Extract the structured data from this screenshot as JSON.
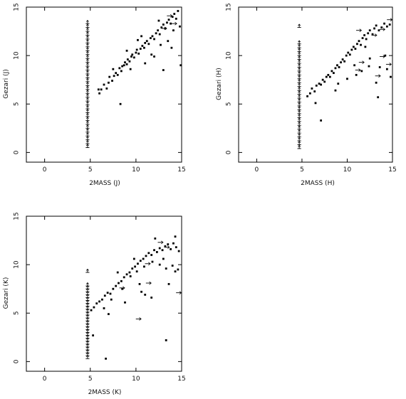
{
  "chart_data": [
    {
      "type": "scatter",
      "xlabel": "2MASS (J)",
      "ylabel": "Gezari (J)",
      "xlim": [
        -2,
        15
      ],
      "ylim": [
        -1,
        15
      ],
      "xticks": [
        0,
        5,
        10,
        15
      ],
      "yticks": [
        0,
        5,
        10,
        15
      ],
      "grid": false,
      "points": [
        [
          6.0,
          6.1
        ],
        [
          6.2,
          6.5
        ],
        [
          6.5,
          7.0
        ],
        [
          6.8,
          6.6
        ],
        [
          7.0,
          7.2
        ],
        [
          7.1,
          7.8
        ],
        [
          7.4,
          7.4
        ],
        [
          7.6,
          7.9
        ],
        [
          7.8,
          8.2
        ],
        [
          8.0,
          8.0
        ],
        [
          8.2,
          8.7
        ],
        [
          8.4,
          8.4
        ],
        [
          8.5,
          8.9
        ],
        [
          8.7,
          9.0
        ],
        [
          8.8,
          9.3
        ],
        [
          9.0,
          9.1
        ],
        [
          9.1,
          9.6
        ],
        [
          9.3,
          9.4
        ],
        [
          9.5,
          9.9
        ],
        [
          9.6,
          10.1
        ],
        [
          9.8,
          9.8
        ],
        [
          10.0,
          10.3
        ],
        [
          10.1,
          10.6
        ],
        [
          10.3,
          10.2
        ],
        [
          10.5,
          10.7
        ],
        [
          10.7,
          11.0
        ],
        [
          10.9,
          10.8
        ],
        [
          11.0,
          11.3
        ],
        [
          11.2,
          11.5
        ],
        [
          11.4,
          11.2
        ],
        [
          11.6,
          11.8
        ],
        [
          11.8,
          12.0
        ],
        [
          12.0,
          11.7
        ],
        [
          12.2,
          12.3
        ],
        [
          12.4,
          12.6
        ],
        [
          12.6,
          12.2
        ],
        [
          12.8,
          12.9
        ],
        [
          13.0,
          13.2
        ],
        [
          13.2,
          12.8
        ],
        [
          13.4,
          13.4
        ],
        [
          13.6,
          13.7
        ],
        [
          13.8,
          13.3
        ],
        [
          14.0,
          14.0
        ],
        [
          14.2,
          14.3
        ],
        [
          14.4,
          13.8
        ],
        [
          14.6,
          14.6
        ],
        [
          9.0,
          10.5
        ],
        [
          10.2,
          11.6
        ],
        [
          12.0,
          9.9
        ],
        [
          13.0,
          8.5
        ],
        [
          11.0,
          9.2
        ],
        [
          8.3,
          5.0
        ],
        [
          5.9,
          6.5
        ],
        [
          7.5,
          8.6
        ],
        [
          12.5,
          13.6
        ],
        [
          13.5,
          11.5
        ],
        [
          14.1,
          12.6
        ],
        [
          14.8,
          13.0
        ],
        [
          14.9,
          9.0
        ],
        [
          10.6,
          12.0
        ],
        [
          9.4,
          8.6
        ],
        [
          11.7,
          10.1
        ],
        [
          13.9,
          10.8
        ],
        [
          12.7,
          11.1
        ]
      ],
      "upper_limit_x": 4.7,
      "upper_limits_y": [
        0.5,
        0.9,
        1.3,
        1.7,
        2.1,
        2.5,
        2.9,
        3.3,
        3.7,
        4.1,
        4.5,
        4.9,
        5.3,
        5.7,
        6.1,
        6.5,
        6.9,
        7.3,
        7.7,
        8.1,
        8.5,
        8.9,
        9.3,
        9.7,
        10.1,
        10.5,
        10.9,
        11.3,
        11.7,
        12.1,
        12.5,
        12.9,
        13.3
      ],
      "limit_arrows": [
        [
          13.7,
          14.1
        ],
        [
          14.2,
          13.3
        ],
        [
          13.1,
          12.8
        ]
      ]
    },
    {
      "type": "scatter",
      "xlabel": "2MASS (H)",
      "ylabel": "Gezari (H)",
      "xlim": [
        -2,
        15
      ],
      "ylim": [
        -1,
        15
      ],
      "xticks": [
        0,
        5,
        10,
        15
      ],
      "yticks": [
        0,
        5,
        10,
        15
      ],
      "grid": false,
      "points": [
        [
          5.6,
          5.8
        ],
        [
          5.9,
          6.1
        ],
        [
          6.1,
          6.6
        ],
        [
          6.4,
          6.3
        ],
        [
          6.6,
          6.9
        ],
        [
          6.9,
          7.1
        ],
        [
          7.1,
          7.0
        ],
        [
          7.3,
          7.5
        ],
        [
          7.5,
          7.3
        ],
        [
          7.7,
          7.8
        ],
        [
          7.9,
          8.0
        ],
        [
          8.1,
          7.8
        ],
        [
          8.3,
          8.4
        ],
        [
          8.5,
          8.2
        ],
        [
          8.7,
          8.7
        ],
        [
          8.9,
          9.0
        ],
        [
          9.1,
          8.8
        ],
        [
          9.3,
          9.3
        ],
        [
          9.5,
          9.6
        ],
        [
          9.7,
          9.4
        ],
        [
          9.9,
          10.0
        ],
        [
          10.1,
          10.3
        ],
        [
          10.3,
          10.1
        ],
        [
          10.5,
          10.6
        ],
        [
          10.7,
          10.9
        ],
        [
          10.9,
          10.7
        ],
        [
          11.1,
          11.2
        ],
        [
          11.3,
          11.5
        ],
        [
          11.5,
          11.1
        ],
        [
          11.7,
          11.8
        ],
        [
          11.9,
          12.1
        ],
        [
          12.1,
          11.7
        ],
        [
          12.3,
          12.3
        ],
        [
          12.5,
          12.6
        ],
        [
          12.8,
          12.2
        ],
        [
          13.0,
          12.8
        ],
        [
          13.2,
          13.1
        ],
        [
          13.5,
          12.6
        ],
        [
          13.8,
          12.9
        ],
        [
          14.1,
          13.3
        ],
        [
          14.4,
          13.0
        ],
        [
          14.7,
          13.2
        ],
        [
          6.5,
          5.1
        ],
        [
          7.1,
          3.3
        ],
        [
          8.7,
          6.4
        ],
        [
          10.0,
          7.6
        ],
        [
          11.6,
          8.4
        ],
        [
          12.5,
          9.7
        ],
        [
          13.6,
          8.8
        ],
        [
          14.4,
          8.6
        ],
        [
          12.0,
          10.9
        ],
        [
          13.2,
          7.2
        ],
        [
          9.0,
          7.1
        ],
        [
          10.8,
          9.0
        ],
        [
          13.4,
          5.7
        ],
        [
          14.2,
          10.0
        ],
        [
          11.0,
          8.0
        ],
        [
          14.8,
          7.8
        ],
        [
          12.4,
          8.9
        ]
      ],
      "upper_limit_x": 4.7,
      "upper_limits_y": [
        0.4,
        0.8,
        1.2,
        1.6,
        2.0,
        2.4,
        2.8,
        3.2,
        3.6,
        4.0,
        4.4,
        4.8,
        5.2,
        5.6,
        6.0,
        6.4,
        6.8,
        7.2,
        7.6,
        8.0,
        8.4,
        8.8,
        9.2,
        9.6,
        10.0,
        10.4,
        10.8,
        11.2,
        12.9
      ],
      "limit_arrows": [
        [
          14.7,
          13.7
        ],
        [
          13.9,
          12.7
        ],
        [
          13.0,
          12.1
        ],
        [
          11.3,
          12.6
        ],
        [
          11.6,
          9.3
        ],
        [
          13.9,
          9.9
        ],
        [
          13.4,
          7.9
        ],
        [
          14.6,
          9.1
        ],
        [
          11.2,
          8.5
        ]
      ]
    },
    {
      "type": "scatter",
      "xlabel": "2MASS (K)",
      "ylabel": "Gezari (K)",
      "xlim": [
        -2,
        15
      ],
      "ylim": [
        -1,
        15
      ],
      "xticks": [
        0,
        5,
        10,
        15
      ],
      "yticks": [
        0,
        5,
        10,
        15
      ],
      "grid": false,
      "points": [
        [
          5.1,
          5.3
        ],
        [
          5.4,
          5.6
        ],
        [
          5.7,
          6.0
        ],
        [
          6.0,
          6.2
        ],
        [
          6.3,
          6.4
        ],
        [
          6.6,
          6.8
        ],
        [
          6.9,
          7.1
        ],
        [
          7.2,
          7.0
        ],
        [
          7.5,
          7.5
        ],
        [
          7.8,
          7.8
        ],
        [
          8.1,
          8.1
        ],
        [
          8.4,
          8.3
        ],
        [
          8.7,
          8.7
        ],
        [
          9.0,
          9.0
        ],
        [
          9.3,
          9.2
        ],
        [
          9.6,
          9.6
        ],
        [
          9.9,
          9.8
        ],
        [
          10.2,
          10.1
        ],
        [
          10.5,
          10.4
        ],
        [
          10.8,
          10.6
        ],
        [
          11.1,
          10.9
        ],
        [
          11.4,
          11.2
        ],
        [
          11.7,
          11.0
        ],
        [
          12.0,
          11.5
        ],
        [
          12.3,
          11.3
        ],
        [
          12.6,
          11.7
        ],
        [
          12.9,
          11.5
        ],
        [
          13.2,
          11.9
        ],
        [
          13.5,
          12.1
        ],
        [
          13.8,
          11.6
        ],
        [
          14.1,
          12.2
        ],
        [
          14.4,
          11.8
        ],
        [
          14.7,
          11.4
        ],
        [
          6.5,
          5.5
        ],
        [
          7.3,
          6.4
        ],
        [
          8.5,
          7.5
        ],
        [
          9.4,
          8.8
        ],
        [
          10.1,
          9.3
        ],
        [
          10.9,
          9.8
        ],
        [
          11.8,
          10.3
        ],
        [
          12.6,
          10.0
        ],
        [
          13.3,
          9.6
        ],
        [
          14.0,
          9.9
        ],
        [
          14.6,
          9.5
        ],
        [
          7.0,
          4.9
        ],
        [
          8.8,
          6.1
        ],
        [
          10.4,
          8.0
        ],
        [
          11.0,
          6.9
        ],
        [
          11.7,
          6.6
        ],
        [
          13.6,
          8.0
        ],
        [
          14.3,
          9.3
        ],
        [
          5.3,
          2.7
        ],
        [
          6.7,
          0.3
        ],
        [
          13.3,
          2.2
        ],
        [
          9.8,
          10.6
        ],
        [
          12.1,
          12.7
        ],
        [
          13.0,
          10.6
        ],
        [
          14.3,
          12.9
        ],
        [
          8.0,
          9.2
        ],
        [
          10.6,
          7.2
        ]
      ],
      "upper_limit_x": 4.7,
      "upper_limits_y": [
        0.3,
        0.6,
        0.9,
        1.2,
        1.5,
        1.8,
        2.1,
        2.4,
        2.7,
        3.0,
        3.3,
        3.6,
        3.9,
        4.2,
        4.5,
        4.8,
        5.1,
        5.4,
        5.7,
        6.0,
        6.3,
        6.6,
        6.9,
        7.2,
        7.5,
        7.8,
        9.2
      ],
      "limit_arrows": [
        [
          12.7,
          12.3
        ],
        [
          13.4,
          11.8
        ],
        [
          11.3,
          10.1
        ],
        [
          11.4,
          8.1
        ],
        [
          10.3,
          4.4
        ],
        [
          14.7,
          7.1
        ],
        [
          8.5,
          7.6
        ]
      ]
    }
  ]
}
